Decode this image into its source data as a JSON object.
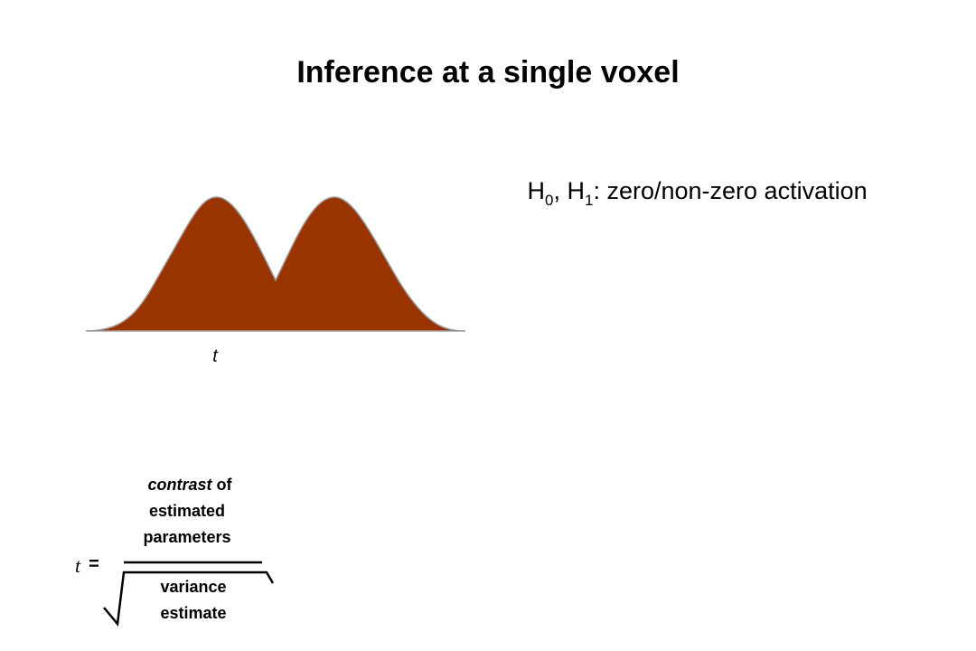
{
  "title": "Inference at a single voxel",
  "hypotheses": {
    "h0": "H",
    "h0_sub": "0",
    "h1": ", H",
    "h1_sub": "1",
    "description": ": zero/non-zero activation"
  },
  "distribution": {
    "axis_label": "t"
  },
  "formula": {
    "lhs": "t",
    "equals": "=",
    "numerator": {
      "emphasis": "contrast",
      "rest": " of",
      "line2": "estimated",
      "line3": "parameters"
    },
    "denominator": {
      "line1": "variance",
      "line2": "estimate"
    }
  }
}
